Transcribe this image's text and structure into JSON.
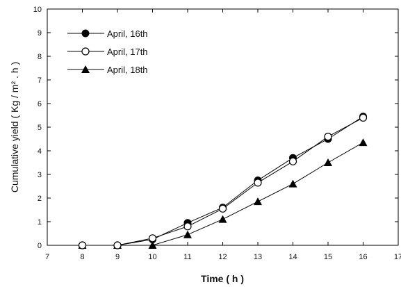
{
  "chart_data": {
    "type": "line",
    "title": "",
    "xlabel": "Time ( h )",
    "ylabel": "Cumulative yield ( Kg / m² . h )",
    "xlim": [
      7,
      17
    ],
    "ylim": [
      0,
      10
    ],
    "xticks": [
      7,
      8,
      9,
      10,
      11,
      12,
      13,
      14,
      15,
      16,
      17
    ],
    "yticks": [
      0,
      1,
      2,
      3,
      4,
      5,
      6,
      7,
      8,
      9,
      10
    ],
    "grid": false,
    "legend_position": "top-left",
    "series": [
      {
        "name": "April, 16th",
        "marker": "filled-circle",
        "color": "#000000",
        "x": [
          8,
          9,
          10,
          11,
          12,
          13,
          14,
          15,
          16
        ],
        "y": [
          0.0,
          0.0,
          0.25,
          0.95,
          1.6,
          2.75,
          3.7,
          4.5,
          5.45
        ]
      },
      {
        "name": "April, 17th",
        "marker": "open-circle",
        "color": "#000000",
        "x": [
          8,
          9,
          10,
          11,
          12,
          13,
          14,
          15,
          16
        ],
        "y": [
          0.0,
          0.0,
          0.3,
          0.8,
          1.55,
          2.65,
          3.55,
          4.6,
          5.4
        ]
      },
      {
        "name": "April, 18th",
        "marker": "filled-triangle",
        "color": "#000000",
        "x": [
          8,
          9,
          10,
          11,
          12,
          13,
          14,
          15,
          16
        ],
        "y": [
          0.0,
          0.0,
          0.0,
          0.45,
          1.1,
          1.85,
          2.6,
          3.5,
          4.35
        ]
      }
    ]
  }
}
